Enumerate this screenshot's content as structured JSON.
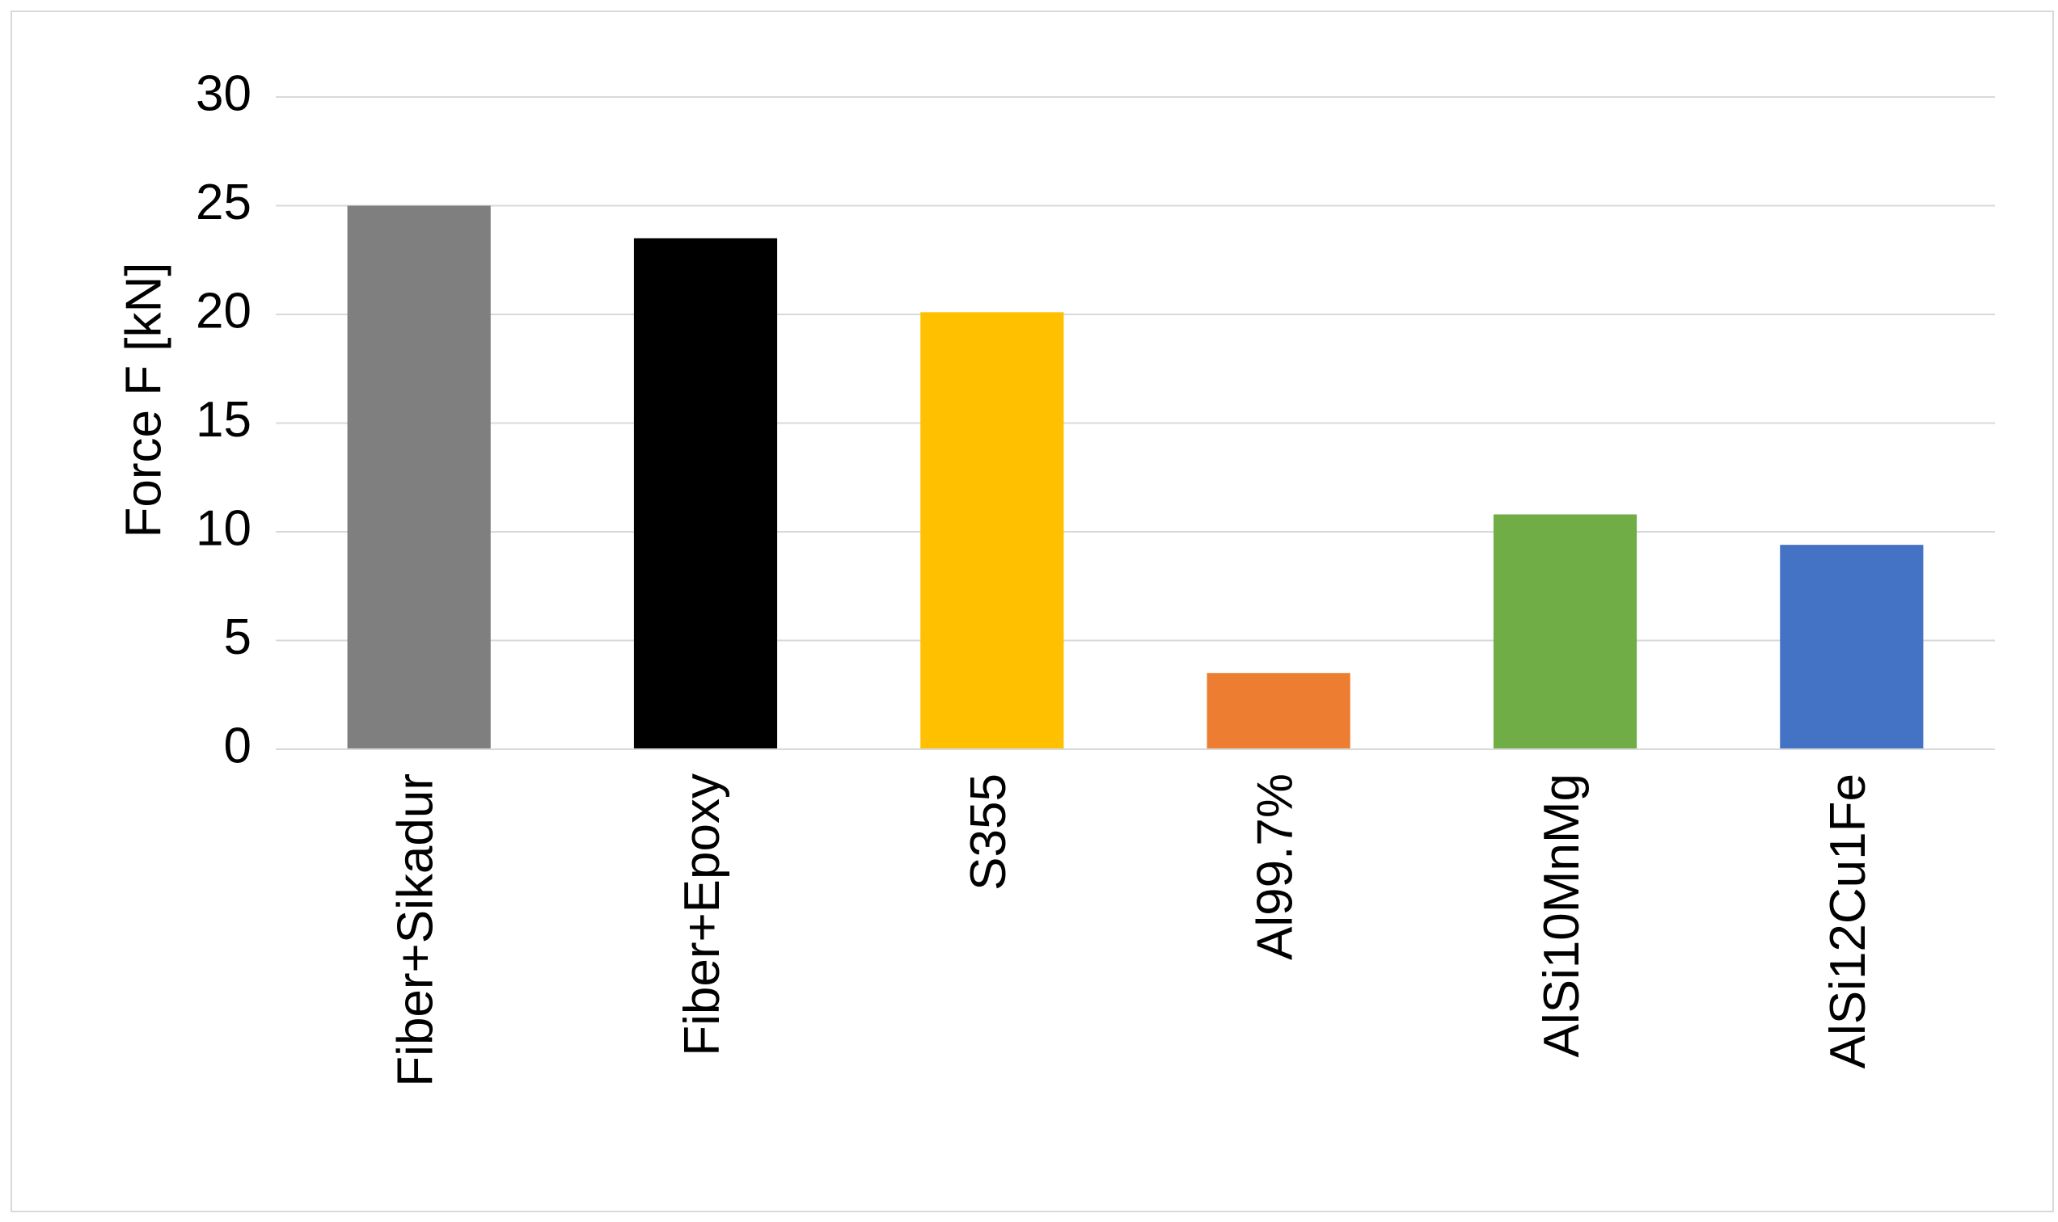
{
  "chart_data": {
    "type": "bar",
    "y_label": "Force F [kN]",
    "categories": [
      "Fiber+Sikadur",
      "Fiber+Epoxy",
      "S355",
      "Al99.7%",
      "AlSi10MnMg",
      "AlSi12Cu1Fe"
    ],
    "values": [
      25,
      23.5,
      20.1,
      3.5,
      10.8,
      9.4
    ],
    "colors": [
      "#7f7f7f",
      "#000000",
      "#ffc000",
      "#ed7d31",
      "#70ad47",
      "#4472c4"
    ],
    "ylim": [
      0,
      30
    ],
    "yticks": [
      0,
      5,
      10,
      15,
      20,
      25,
      30
    ],
    "grid": true
  }
}
